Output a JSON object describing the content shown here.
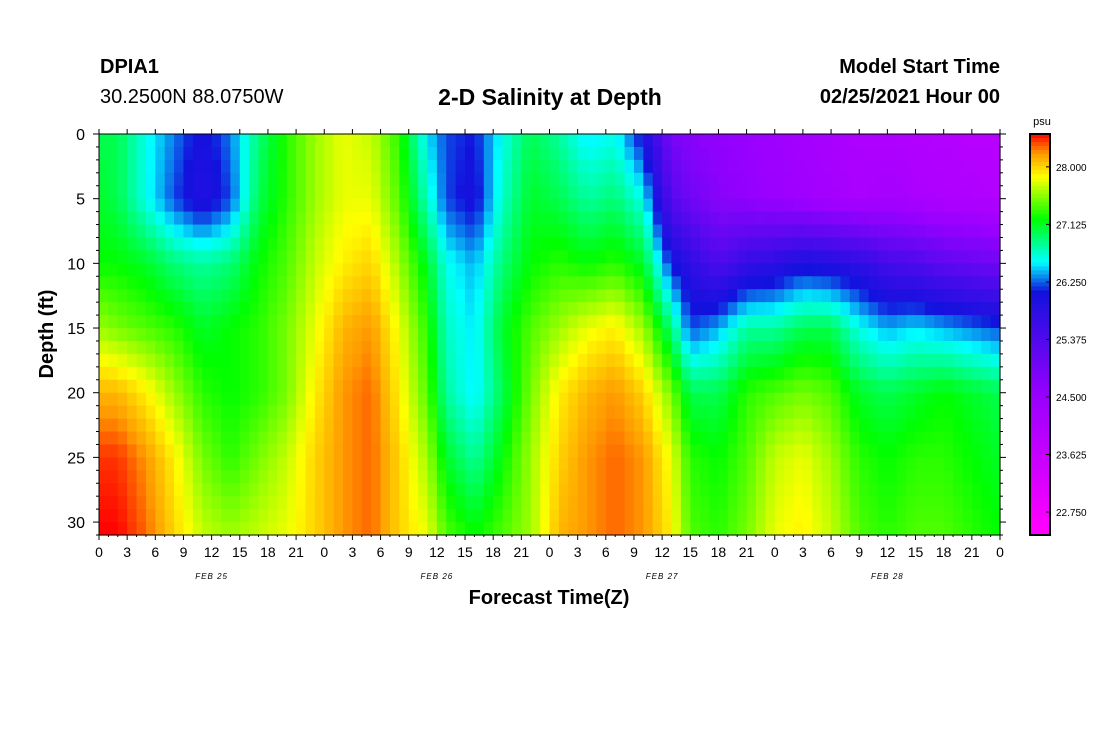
{
  "header": {
    "station": "DPIA1",
    "coords": "30.2500N 88.0750W",
    "title": "2-D Salinity at Depth",
    "start_label": "Model Start Time",
    "start_value": "02/25/2021 Hour 00"
  },
  "chart_data": {
    "type": "heatmap",
    "title": "2-D Salinity at Depth",
    "xlabel": "Forecast Time(Z)",
    "ylabel": "Depth (ft)",
    "unit": "psu",
    "x_hours": [
      0,
      96
    ],
    "x_tick_step_hours": 3,
    "x_tick_labels": [
      "0",
      "3",
      "6",
      "9",
      "12",
      "15",
      "18",
      "21",
      "0",
      "3",
      "6",
      "9",
      "12",
      "15",
      "18",
      "21",
      "0",
      "3",
      "6",
      "9",
      "12",
      "15",
      "18",
      "21",
      "0",
      "3",
      "6",
      "9",
      "12",
      "15",
      "18",
      "21",
      "0"
    ],
    "day_labels": [
      {
        "label": "FEB 25",
        "hour": 12
      },
      {
        "label": "FEB 26",
        "hour": 36
      },
      {
        "label": "FEB 27",
        "hour": 60
      },
      {
        "label": "FEB 28",
        "hour": 84
      }
    ],
    "ylim": [
      0,
      31
    ],
    "y_ticks": [
      0,
      5,
      10,
      15,
      20,
      25,
      30
    ],
    "y_inverted": true,
    "colorbar_ticks": [
      28.0,
      27.125,
      26.25,
      25.375,
      24.5,
      23.625,
      22.75
    ],
    "colorbar_tick_labels": [
      "28.000",
      "27.125",
      "26.250",
      "25.375",
      "24.500",
      "23.625",
      "22.750"
    ],
    "colorbar_range": [
      22.4,
      28.5
    ],
    "colors": [
      "#ff00ff",
      "#9a00ff",
      "#1212dd",
      "#00ffff",
      "#00ff00",
      "#ffff00",
      "#ff9900",
      "#ff0000"
    ],
    "color_stops": [
      22.5,
      24.5,
      26.1,
      26.55,
      27.2,
      27.85,
      28.2,
      28.5
    ],
    "time_columns": {
      "hours": [
        0,
        2,
        5,
        8,
        11,
        14,
        17,
        20,
        23,
        26,
        29,
        32,
        35,
        37,
        40,
        43,
        46,
        49,
        52,
        55,
        58,
        61,
        63,
        66,
        69,
        72,
        75,
        78,
        81,
        84,
        87,
        90,
        93,
        96
      ],
      "depths_ft": [
        0,
        5,
        10,
        15,
        20,
        25,
        31
      ],
      "salinity_psu": [
        [
          27.0,
          27.1,
          27.2,
          27.6,
          28.1,
          28.4,
          28.5
        ],
        [
          27.0,
          27.0,
          27.2,
          27.5,
          28.1,
          28.4,
          28.5
        ],
        [
          26.6,
          26.6,
          27.1,
          27.4,
          27.9,
          28.2,
          28.3
        ],
        [
          26.3,
          26.2,
          26.9,
          27.3,
          27.6,
          27.9,
          28.0
        ],
        [
          26.0,
          25.9,
          26.8,
          27.1,
          27.3,
          27.5,
          27.7
        ],
        [
          26.3,
          26.2,
          26.9,
          27.2,
          27.2,
          27.3,
          27.6
        ],
        [
          26.9,
          27.0,
          27.2,
          27.3,
          27.3,
          27.5,
          27.7
        ],
        [
          27.3,
          27.3,
          27.4,
          27.5,
          27.5,
          27.7,
          27.8
        ],
        [
          27.6,
          27.6,
          27.7,
          27.8,
          27.9,
          28.0,
          28.0
        ],
        [
          27.8,
          27.8,
          27.9,
          28.1,
          28.2,
          28.2,
          28.2
        ],
        [
          27.7,
          27.8,
          28.0,
          28.2,
          28.3,
          28.3,
          28.3
        ],
        [
          27.3,
          27.4,
          27.6,
          27.8,
          27.9,
          28.0,
          28.0
        ],
        [
          26.5,
          26.7,
          27.1,
          27.3,
          27.4,
          27.6,
          27.8
        ],
        [
          26.2,
          26.2,
          26.6,
          26.7,
          26.8,
          27.1,
          27.4
        ],
        [
          26.1,
          26.0,
          26.4,
          26.5,
          26.5,
          26.8,
          27.2
        ],
        [
          26.6,
          26.7,
          26.9,
          27.1,
          27.0,
          27.2,
          27.4
        ],
        [
          27.0,
          27.1,
          27.2,
          27.4,
          27.5,
          27.6,
          27.6
        ],
        [
          26.8,
          27.0,
          27.3,
          27.6,
          27.9,
          28.0,
          28.1
        ],
        [
          26.5,
          26.8,
          27.2,
          27.8,
          28.1,
          28.2,
          28.2
        ],
        [
          26.6,
          26.9,
          27.3,
          27.9,
          28.2,
          28.3,
          28.3
        ],
        [
          26.0,
          26.6,
          27.1,
          27.6,
          28.0,
          28.2,
          28.2
        ],
        [
          24.9,
          25.3,
          26.1,
          26.9,
          27.5,
          27.8,
          27.9
        ],
        [
          24.7,
          25.0,
          25.8,
          26.2,
          27.0,
          27.3,
          27.4
        ],
        [
          24.6,
          24.7,
          25.4,
          26.4,
          27.0,
          27.2,
          27.3
        ],
        [
          24.5,
          24.6,
          25.7,
          26.8,
          27.3,
          27.4,
          27.5
        ],
        [
          24.4,
          24.5,
          25.8,
          26.8,
          27.4,
          27.7,
          27.8
        ],
        [
          24.3,
          24.4,
          26.0,
          27.0,
          27.5,
          27.8,
          27.9
        ],
        [
          24.2,
          24.3,
          25.9,
          27.0,
          27.4,
          27.6,
          27.7
        ],
        [
          24.1,
          24.2,
          25.8,
          26.6,
          27.1,
          27.3,
          27.4
        ],
        [
          24.1,
          24.3,
          25.5,
          26.4,
          27.0,
          27.2,
          27.3
        ],
        [
          24.0,
          24.2,
          25.4,
          26.5,
          27.1,
          27.3,
          27.4
        ],
        [
          24.0,
          24.1,
          25.2,
          26.4,
          27.2,
          27.3,
          27.4
        ],
        [
          23.9,
          24.1,
          25.1,
          26.3,
          27.1,
          27.2,
          27.3
        ],
        [
          23.9,
          24.0,
          25.0,
          26.2,
          27.0,
          27.1,
          27.2
        ]
      ]
    }
  }
}
